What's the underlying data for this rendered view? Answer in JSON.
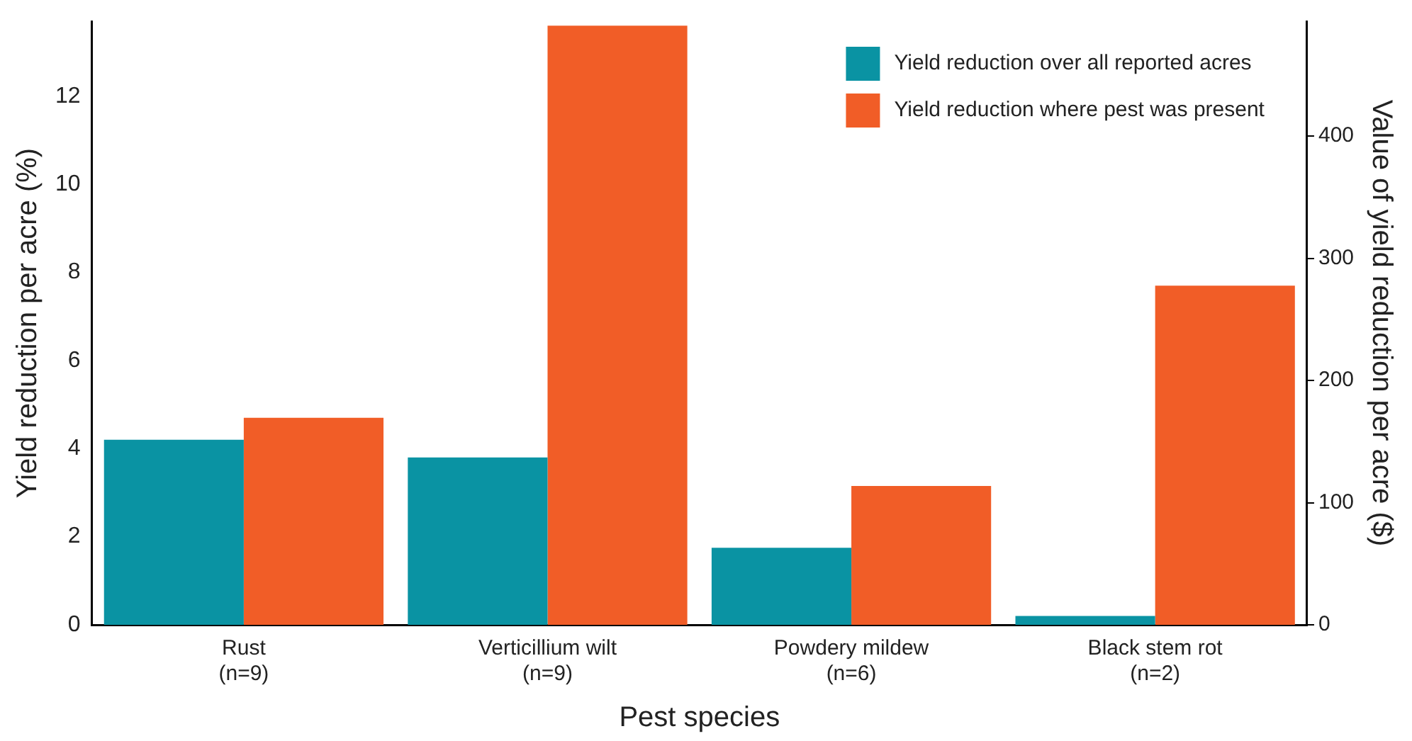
{
  "chart_data": {
    "type": "bar",
    "categories": [
      "Rust\n(n=9)",
      "Verticillium wilt\n(n=9)",
      "Powdery mildew\n(n=6)",
      "Black stem rot\n(n=2)"
    ],
    "series": [
      {
        "name": "Yield reduction over all reported acres",
        "color": "#0a93a3",
        "values": [
          4.2,
          3.8,
          1.75,
          0.2
        ]
      },
      {
        "name": "Yield reduction where pest was present",
        "color": "#f15d27",
        "values": [
          4.7,
          13.6,
          3.15,
          7.7
        ]
      }
    ],
    "xlabel": "Pest species",
    "ylabel": "Yield reduction per acre (%)",
    "y2label": "Value of yield reduction per acre ($)",
    "ylim": [
      0,
      13.7
    ],
    "yticks": [
      0,
      2,
      4,
      6,
      8,
      10,
      12
    ],
    "y2lim": [
      0,
      494
    ],
    "y2ticks": [
      0,
      100,
      200,
      300,
      400
    ],
    "grid": false,
    "legend": "top right"
  }
}
